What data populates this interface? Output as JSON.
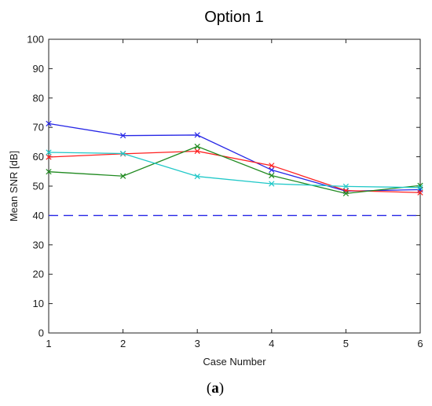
{
  "chart_data": {
    "type": "line",
    "title": "Option 1",
    "xlabel": "Case Number",
    "ylabel": "Mean SNR [dB]",
    "x": [
      1,
      2,
      3,
      4,
      5,
      6
    ],
    "xlim": [
      1,
      6
    ],
    "ylim": [
      0,
      100
    ],
    "xticks": [
      "1",
      "2",
      "3",
      "4",
      "5",
      "6"
    ],
    "yticks": [
      "0",
      "10",
      "20",
      "30",
      "40",
      "50",
      "60",
      "70",
      "80",
      "90",
      "100"
    ],
    "grid": false,
    "marker": "x",
    "series": [
      {
        "color": "#2626e6",
        "values": [
          71.3,
          67.2,
          67.4,
          55.5,
          48.3,
          48.8
        ]
      },
      {
        "color": "#ff2020",
        "values": [
          59.9,
          61.0,
          61.9,
          57.0,
          48.5,
          47.8
        ]
      },
      {
        "color": "#208a20",
        "values": [
          54.9,
          53.4,
          63.5,
          53.6,
          47.5,
          50.2
        ]
      },
      {
        "color": "#20c8c8",
        "values": [
          61.5,
          61.1,
          53.3,
          50.8,
          49.9,
          49.5
        ]
      }
    ],
    "reference_line": {
      "value": 40,
      "color": "#2626e6",
      "style": "dashed"
    }
  },
  "caption": {
    "open": "(",
    "letter": "a",
    "close": ")"
  }
}
